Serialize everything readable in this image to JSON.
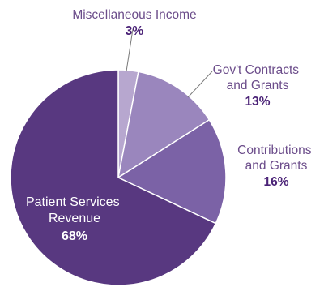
{
  "chart_data": {
    "type": "pie",
    "slices": [
      {
        "label_lines": [
          "Miscellaneous Income"
        ],
        "value": 3,
        "value_label": "3%",
        "color": "#b7a7cf"
      },
      {
        "label_lines": [
          "Gov't Contracts",
          "and Grants"
        ],
        "value": 13,
        "value_label": "13%",
        "color": "#9a86bd"
      },
      {
        "label_lines": [
          "Contributions",
          "and Grants"
        ],
        "value": 16,
        "value_label": "16%",
        "color": "#7b62a6"
      },
      {
        "label_lines": [
          "Patient Services",
          "Revenue"
        ],
        "value": 68,
        "value_label": "68%",
        "color": "#583880"
      }
    ]
  }
}
